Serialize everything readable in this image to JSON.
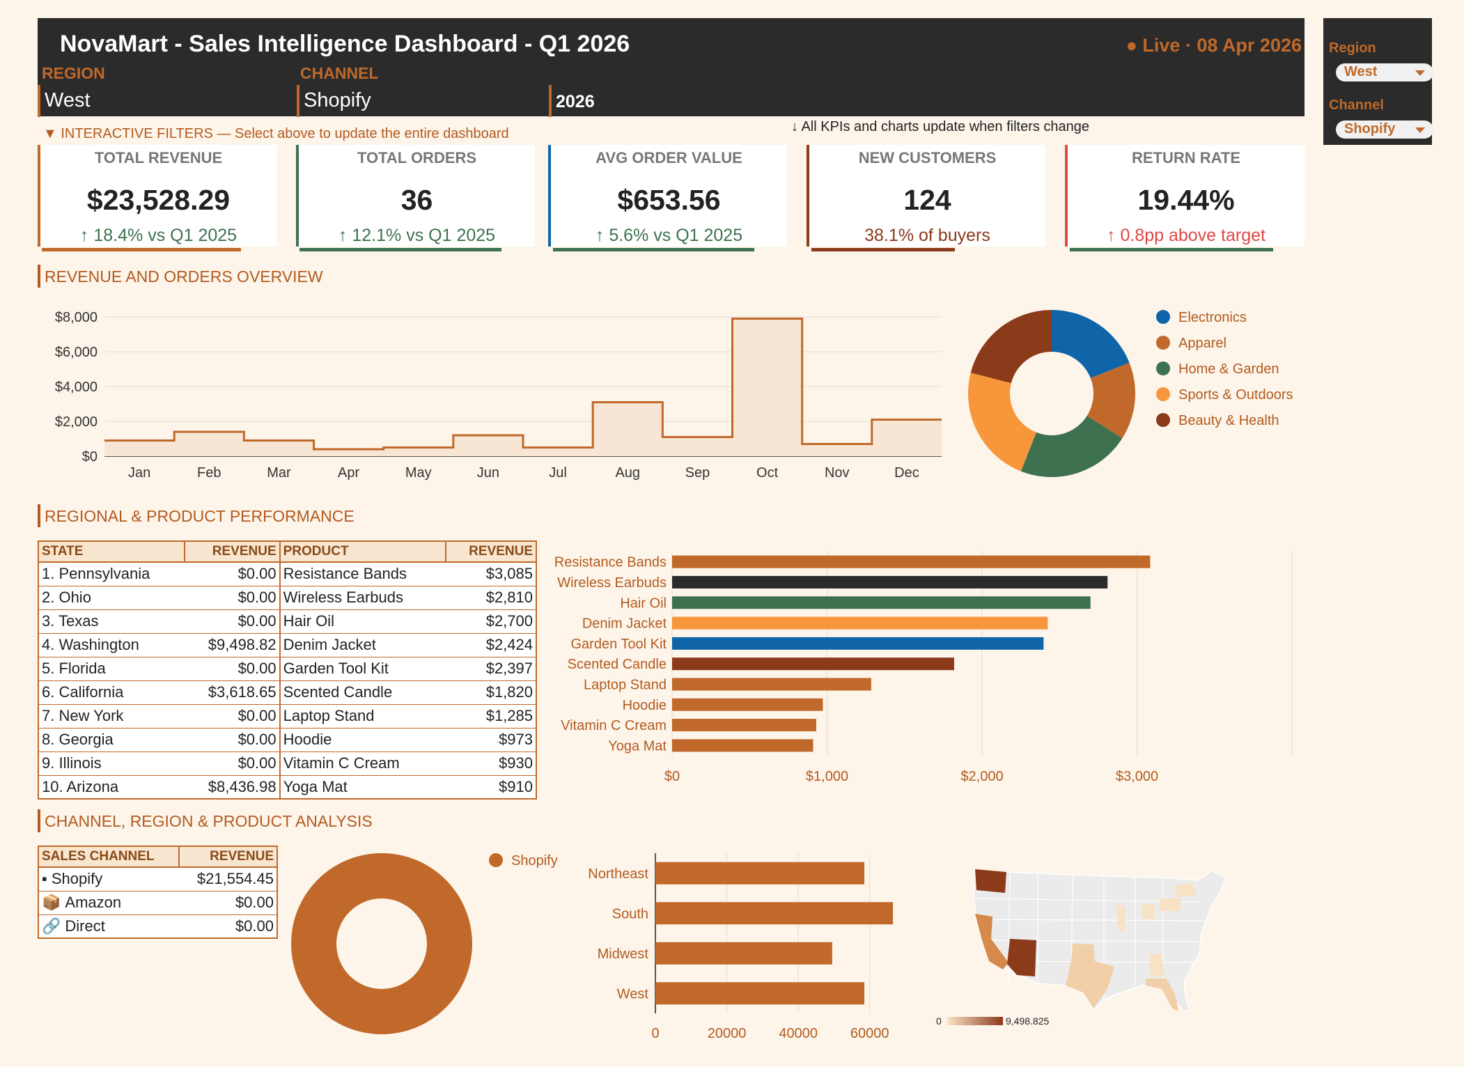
{
  "header": {
    "title": "NovaMart - Sales Intelligence Dashboard - Q1 2026",
    "live": "● Live · 08 Apr 2026",
    "region_label": "REGION",
    "channel_label": "CHANNEL",
    "region_value": "West",
    "channel_value": "Shopify",
    "year_value": "2026"
  },
  "side_panel": {
    "region_label": "Region",
    "region_value": "West",
    "channel_label": "Channel",
    "channel_value": "Shopify"
  },
  "notes": {
    "filters": "▼ INTERACTIVE FILTERS — Select above to update the entire dashboard",
    "update": "↓ All KPIs and charts update when filters change"
  },
  "kpis": [
    {
      "label": "TOTAL REVENUE",
      "value": "$23,528.29",
      "sub": "↑ 18.4% vs Q1 2025",
      "color": "#c0692a",
      "sub_color": "#3e7150"
    },
    {
      "label": "TOTAL ORDERS",
      "value": "36",
      "sub": "↑ 12.1% vs Q1 2025",
      "color": "#3e7150",
      "sub_color": "#3e7150"
    },
    {
      "label": "AVG ORDER VALUE",
      "value": "$653.56",
      "sub": "↑ 5.6% vs Q1 2025",
      "color": "#0f65a8",
      "sub_color": "#3e7150"
    },
    {
      "label": "NEW CUSTOMERS",
      "value": "124",
      "sub": "38.1% of buyers",
      "color": "#8b3a1a",
      "sub_color": "#8b3a1a"
    },
    {
      "label": "RETURN RATE",
      "value": "19.44%",
      "sub": "↑ 0.8pp above target",
      "color": "#e04848",
      "sub_color": "#e04848"
    }
  ],
  "sections": {
    "overview": "REVENUE AND ORDERS OVERVIEW",
    "regional": "REGIONAL & PRODUCT PERFORMANCE",
    "channel": "CHANNEL, REGION & PRODUCT ANALYSIS"
  },
  "state_table": {
    "headers": [
      "STATE",
      "REVENUE",
      "PRODUCT",
      "REVENUE"
    ],
    "rows": [
      [
        "1. Pennsylvania",
        "$0.00",
        "Resistance Bands",
        "$3,085"
      ],
      [
        "2. Ohio",
        "$0.00",
        "Wireless Earbuds",
        "$2,810"
      ],
      [
        "3. Texas",
        "$0.00",
        "Hair Oil",
        "$2,700"
      ],
      [
        "4. Washington",
        "$9,498.82",
        "Denim Jacket",
        "$2,424"
      ],
      [
        "5. Florida",
        "$0.00",
        "Garden Tool Kit",
        "$2,397"
      ],
      [
        "6. California",
        "$3,618.65",
        "Scented Candle",
        "$1,820"
      ],
      [
        "7. New York",
        "$0.00",
        "Laptop Stand",
        "$1,285"
      ],
      [
        "8. Georgia",
        "$0.00",
        "Hoodie",
        "$973"
      ],
      [
        "9. Illinois",
        "$0.00",
        "Vitamin C Cream",
        "$930"
      ],
      [
        "10. Arizona",
        "$8,436.98",
        "Yoga Mat",
        "$910"
      ]
    ]
  },
  "channel_table": {
    "headers": [
      "SALES CHANNEL",
      "REVENUE"
    ],
    "rows": [
      {
        "icon": "▪",
        "icon_name": "bullet-icon",
        "name": "Shopify",
        "value": "$21,554.45"
      },
      {
        "icon": "📦",
        "icon_name": "package-icon",
        "name": "Amazon",
        "value": "$0.00"
      },
      {
        "icon": "🔗",
        "icon_name": "link-icon",
        "name": "Direct",
        "value": "$0.00"
      }
    ]
  },
  "chart_data": [
    {
      "type": "area",
      "x": [
        "Jan",
        "Feb",
        "Mar",
        "Apr",
        "May",
        "Jun",
        "Jul",
        "Aug",
        "Sep",
        "Oct",
        "Nov",
        "Dec"
      ],
      "values": [
        900,
        1400,
        900,
        400,
        500,
        1200,
        500,
        3100,
        1100,
        7900,
        700,
        2100
      ],
      "ylim": [
        0,
        8000
      ],
      "yticks": [
        "$0",
        "$2,000",
        "$4,000",
        "$6,000",
        "$8,000"
      ],
      "grid": true,
      "color": "#c0692a"
    },
    {
      "type": "pie",
      "donut": true,
      "labels": [
        "Electronics",
        "Apparel",
        "Home & Garden",
        "Sports & Outdoors",
        "Beauty & Health"
      ],
      "values": [
        19,
        15,
        22,
        23,
        21
      ],
      "colors": [
        "#0f65a8",
        "#c0692a",
        "#3e7150",
        "#f7963a",
        "#8b3a1a"
      ],
      "legend": "right"
    },
    {
      "type": "bar",
      "orientation": "horizontal",
      "categories": [
        "Resistance Bands",
        "Wireless Earbuds",
        "Hair Oil",
        "Denim Jacket",
        "Garden Tool Kit",
        "Scented Candle",
        "Laptop Stand",
        "Hoodie",
        "Vitamin C Cream",
        "Yoga Mat"
      ],
      "values": [
        3085,
        2810,
        2700,
        2424,
        2397,
        1820,
        1285,
        973,
        930,
        910
      ],
      "colors": [
        "#c0692a",
        "#2b2b2b",
        "#3e7150",
        "#f7963a",
        "#0f65a8",
        "#8b3a1a",
        "#c0692a",
        "#c0692a",
        "#c0692a",
        "#c0692a"
      ],
      "xlim": [
        0,
        4000
      ],
      "xticks": [
        "$0",
        "$1,000",
        "$2,000",
        "$3,000"
      ],
      "grid": true
    },
    {
      "type": "pie",
      "donut": true,
      "labels": [
        "Shopify"
      ],
      "values": [
        100
      ],
      "colors": [
        "#c0692a"
      ],
      "legend": "top-right"
    },
    {
      "type": "bar",
      "orientation": "horizontal",
      "categories": [
        "Northeast",
        "South",
        "Midwest",
        "West"
      ],
      "values": [
        58500,
        66500,
        49500,
        58500
      ],
      "xlim": [
        0,
        70000
      ],
      "xticks": [
        "0",
        "20000",
        "40000",
        "60000"
      ],
      "color": "#c0692a",
      "grid": true
    },
    {
      "type": "heatmap",
      "subtype": "us-choropleth",
      "range": [
        0,
        9498.825
      ],
      "legend_min": "0",
      "legend_max": "9,498.825",
      "colors": [
        "#fbe3c8",
        "#8b3a1a"
      ]
    }
  ]
}
